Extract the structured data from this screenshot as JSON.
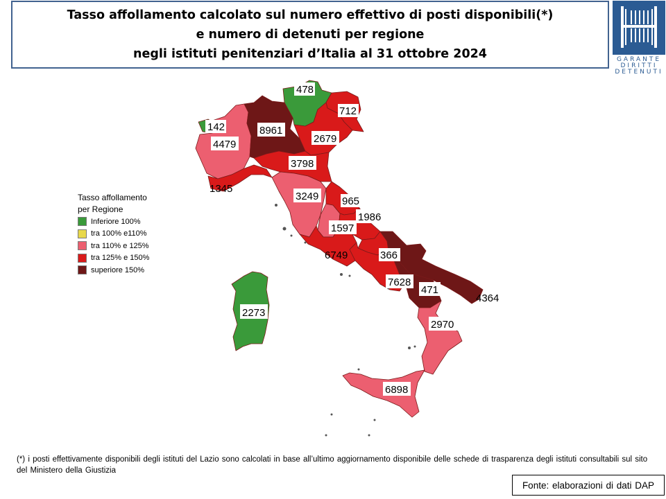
{
  "title": {
    "line1": "Tasso affollamento calcolato sul numero effettivo di posti disponibili(*)",
    "line2": "e numero di detenuti per regione",
    "line3": "negli istituti penitenziari d’Italia al 31 ottobre 2024"
  },
  "logo": {
    "line1": "GARANTE",
    "line2": "DIRITTI",
    "line3": "DETENUTI",
    "color": "#2b5b93"
  },
  "legend": {
    "title_line1": "Tasso affollamento",
    "title_line2": "per Regione",
    "items": [
      {
        "label": "Inferiore 100%",
        "color": "#3a9a3a"
      },
      {
        "label": "tra 100% e110%",
        "color": "#e8d84a"
      },
      {
        "label": "tra 110% e 125%",
        "color": "#ec5f70"
      },
      {
        "label": "tra 125% e 150%",
        "color": "#d91a1a"
      },
      {
        "label": "superiore 150%",
        "color": "#6e1717"
      }
    ]
  },
  "regions": [
    {
      "name": "Valle d'Aosta",
      "detenuti": "142",
      "class": "Inferiore 100%"
    },
    {
      "name": "Piemonte",
      "detenuti": "4479",
      "class": "tra 110% e 125%"
    },
    {
      "name": "Liguria",
      "detenuti": "1345",
      "class": "tra 125% e 150%"
    },
    {
      "name": "Lombardia",
      "detenuti": "8961",
      "class": "superiore 150%"
    },
    {
      "name": "Trentino-Alto Adige",
      "detenuti": "478",
      "class": "Inferiore 100%"
    },
    {
      "name": "Friuli-Venezia Giulia",
      "detenuti": "712",
      "class": "tra 125% e 150%"
    },
    {
      "name": "Veneto",
      "detenuti": "2679",
      "class": "tra 125% e 150%"
    },
    {
      "name": "Emilia-Romagna",
      "detenuti": "3798",
      "class": "tra 125% e 150%"
    },
    {
      "name": "Toscana",
      "detenuti": "3249",
      "class": "tra 110% e 125%"
    },
    {
      "name": "Umbria",
      "detenuti": "1597",
      "class": "tra 110% e 125%"
    },
    {
      "name": "Marche",
      "detenuti": "965",
      "class": "tra 125% e 150%"
    },
    {
      "name": "Abruzzo",
      "detenuti": "1986",
      "class": "tra 125% e 150%"
    },
    {
      "name": "Lazio",
      "detenuti": "6749",
      "class": "tra 125% e 150%"
    },
    {
      "name": "Molise",
      "detenuti": "366",
      "class": "tra 125% e 150%"
    },
    {
      "name": "Campania",
      "detenuti": "7628",
      "class": "tra 125% e 150%"
    },
    {
      "name": "Puglia",
      "detenuti": "4364",
      "class": "superiore 150%"
    },
    {
      "name": "Basilicata",
      "detenuti": "471",
      "class": "superiore 150%"
    },
    {
      "name": "Calabria",
      "detenuti": "2970",
      "class": "tra 110% e 125%"
    },
    {
      "name": "Sicilia",
      "detenuti": "6898",
      "class": "tra 110% e 125%"
    },
    {
      "name": "Sardegna",
      "detenuti": "2273",
      "class": "Inferiore 100%"
    }
  ],
  "footnote": "(*) i posti effettivamente disponibili  degli istituti del Lazio sono calcolati in base all’ultimo aggiornamento disponibile  delle schede di trasparenza degli istituti consultabili sul sito del Ministero della Giustizia",
  "source": "Fonte: elaborazioni di dati DAP"
}
